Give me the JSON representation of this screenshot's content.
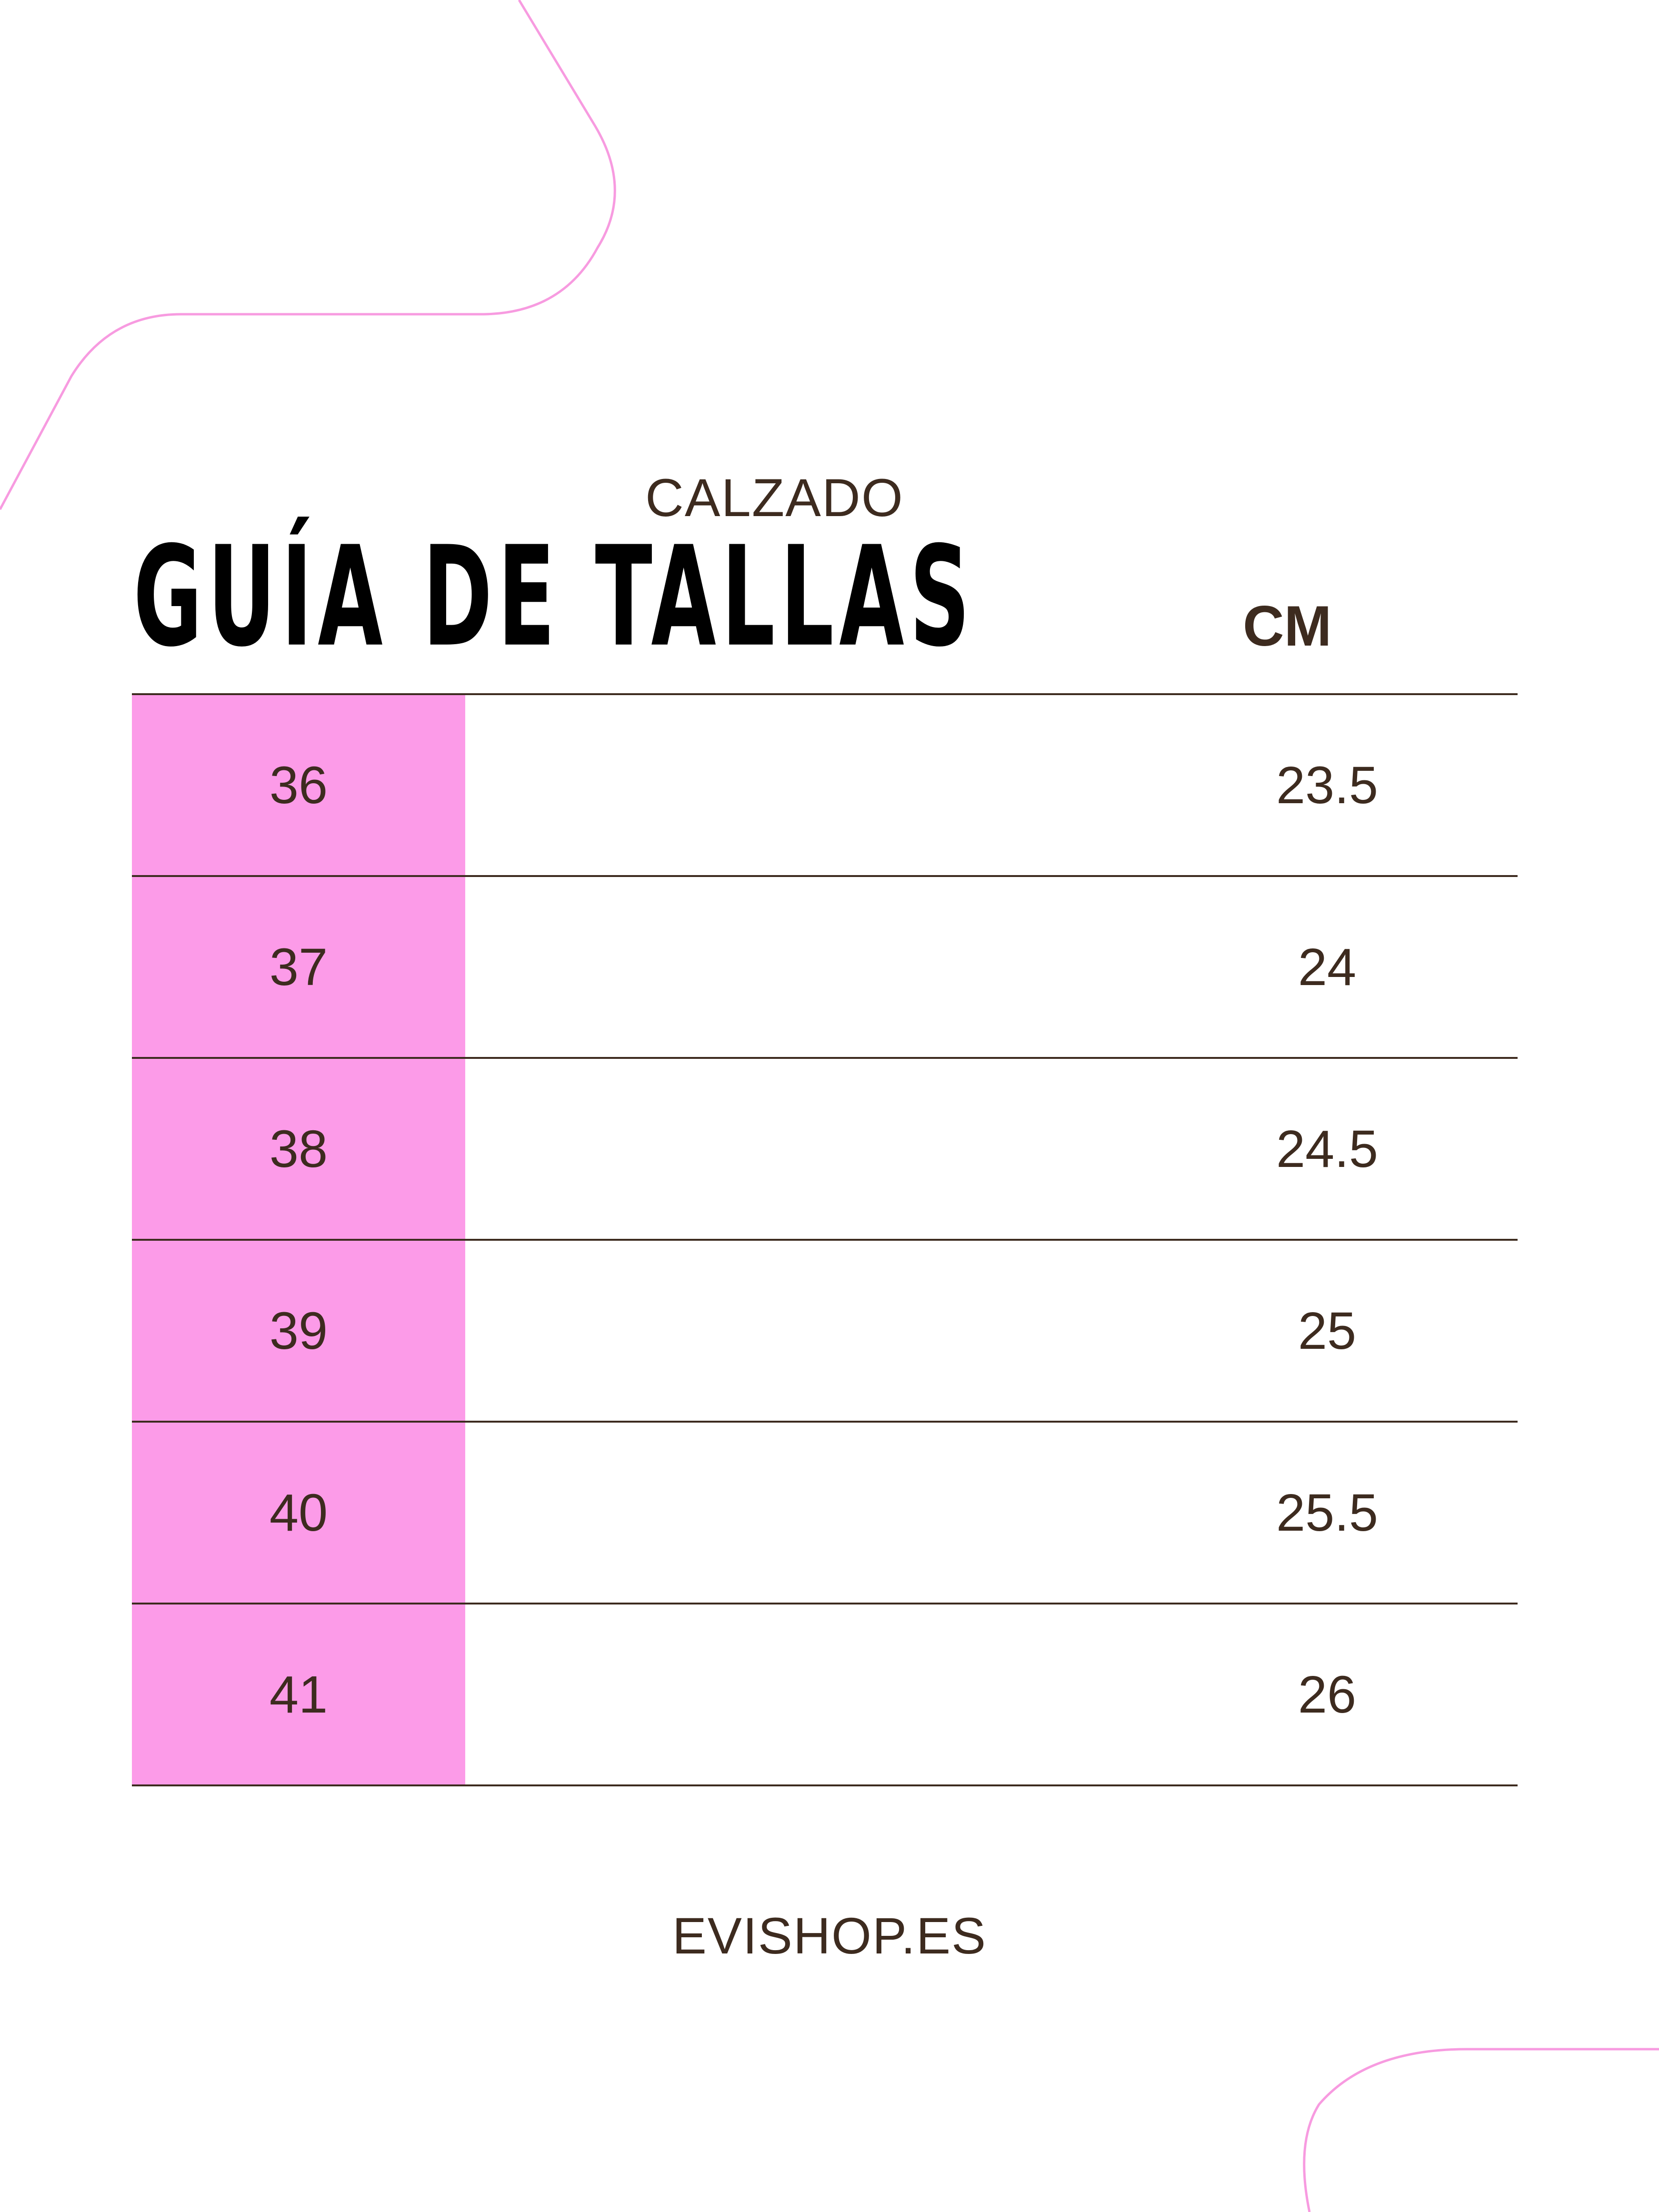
{
  "header": {
    "subtitle": "CALZADO",
    "title": "GUÍA DE TALLAS",
    "column_header": "CM"
  },
  "sizes": [
    {
      "size": "36",
      "cm": "23.5"
    },
    {
      "size": "37",
      "cm": "24"
    },
    {
      "size": "38",
      "cm": "24.5"
    },
    {
      "size": "39",
      "cm": "25"
    },
    {
      "size": "40",
      "cm": "25.5"
    },
    {
      "size": "41",
      "cm": "26"
    }
  ],
  "footer": {
    "website": "EVISHOP.ES"
  },
  "colors": {
    "accent_pink": "#fc9be8",
    "outline_pink": "#f79be0",
    "text_brown": "#3d2b1f",
    "title_black": "#000000"
  }
}
